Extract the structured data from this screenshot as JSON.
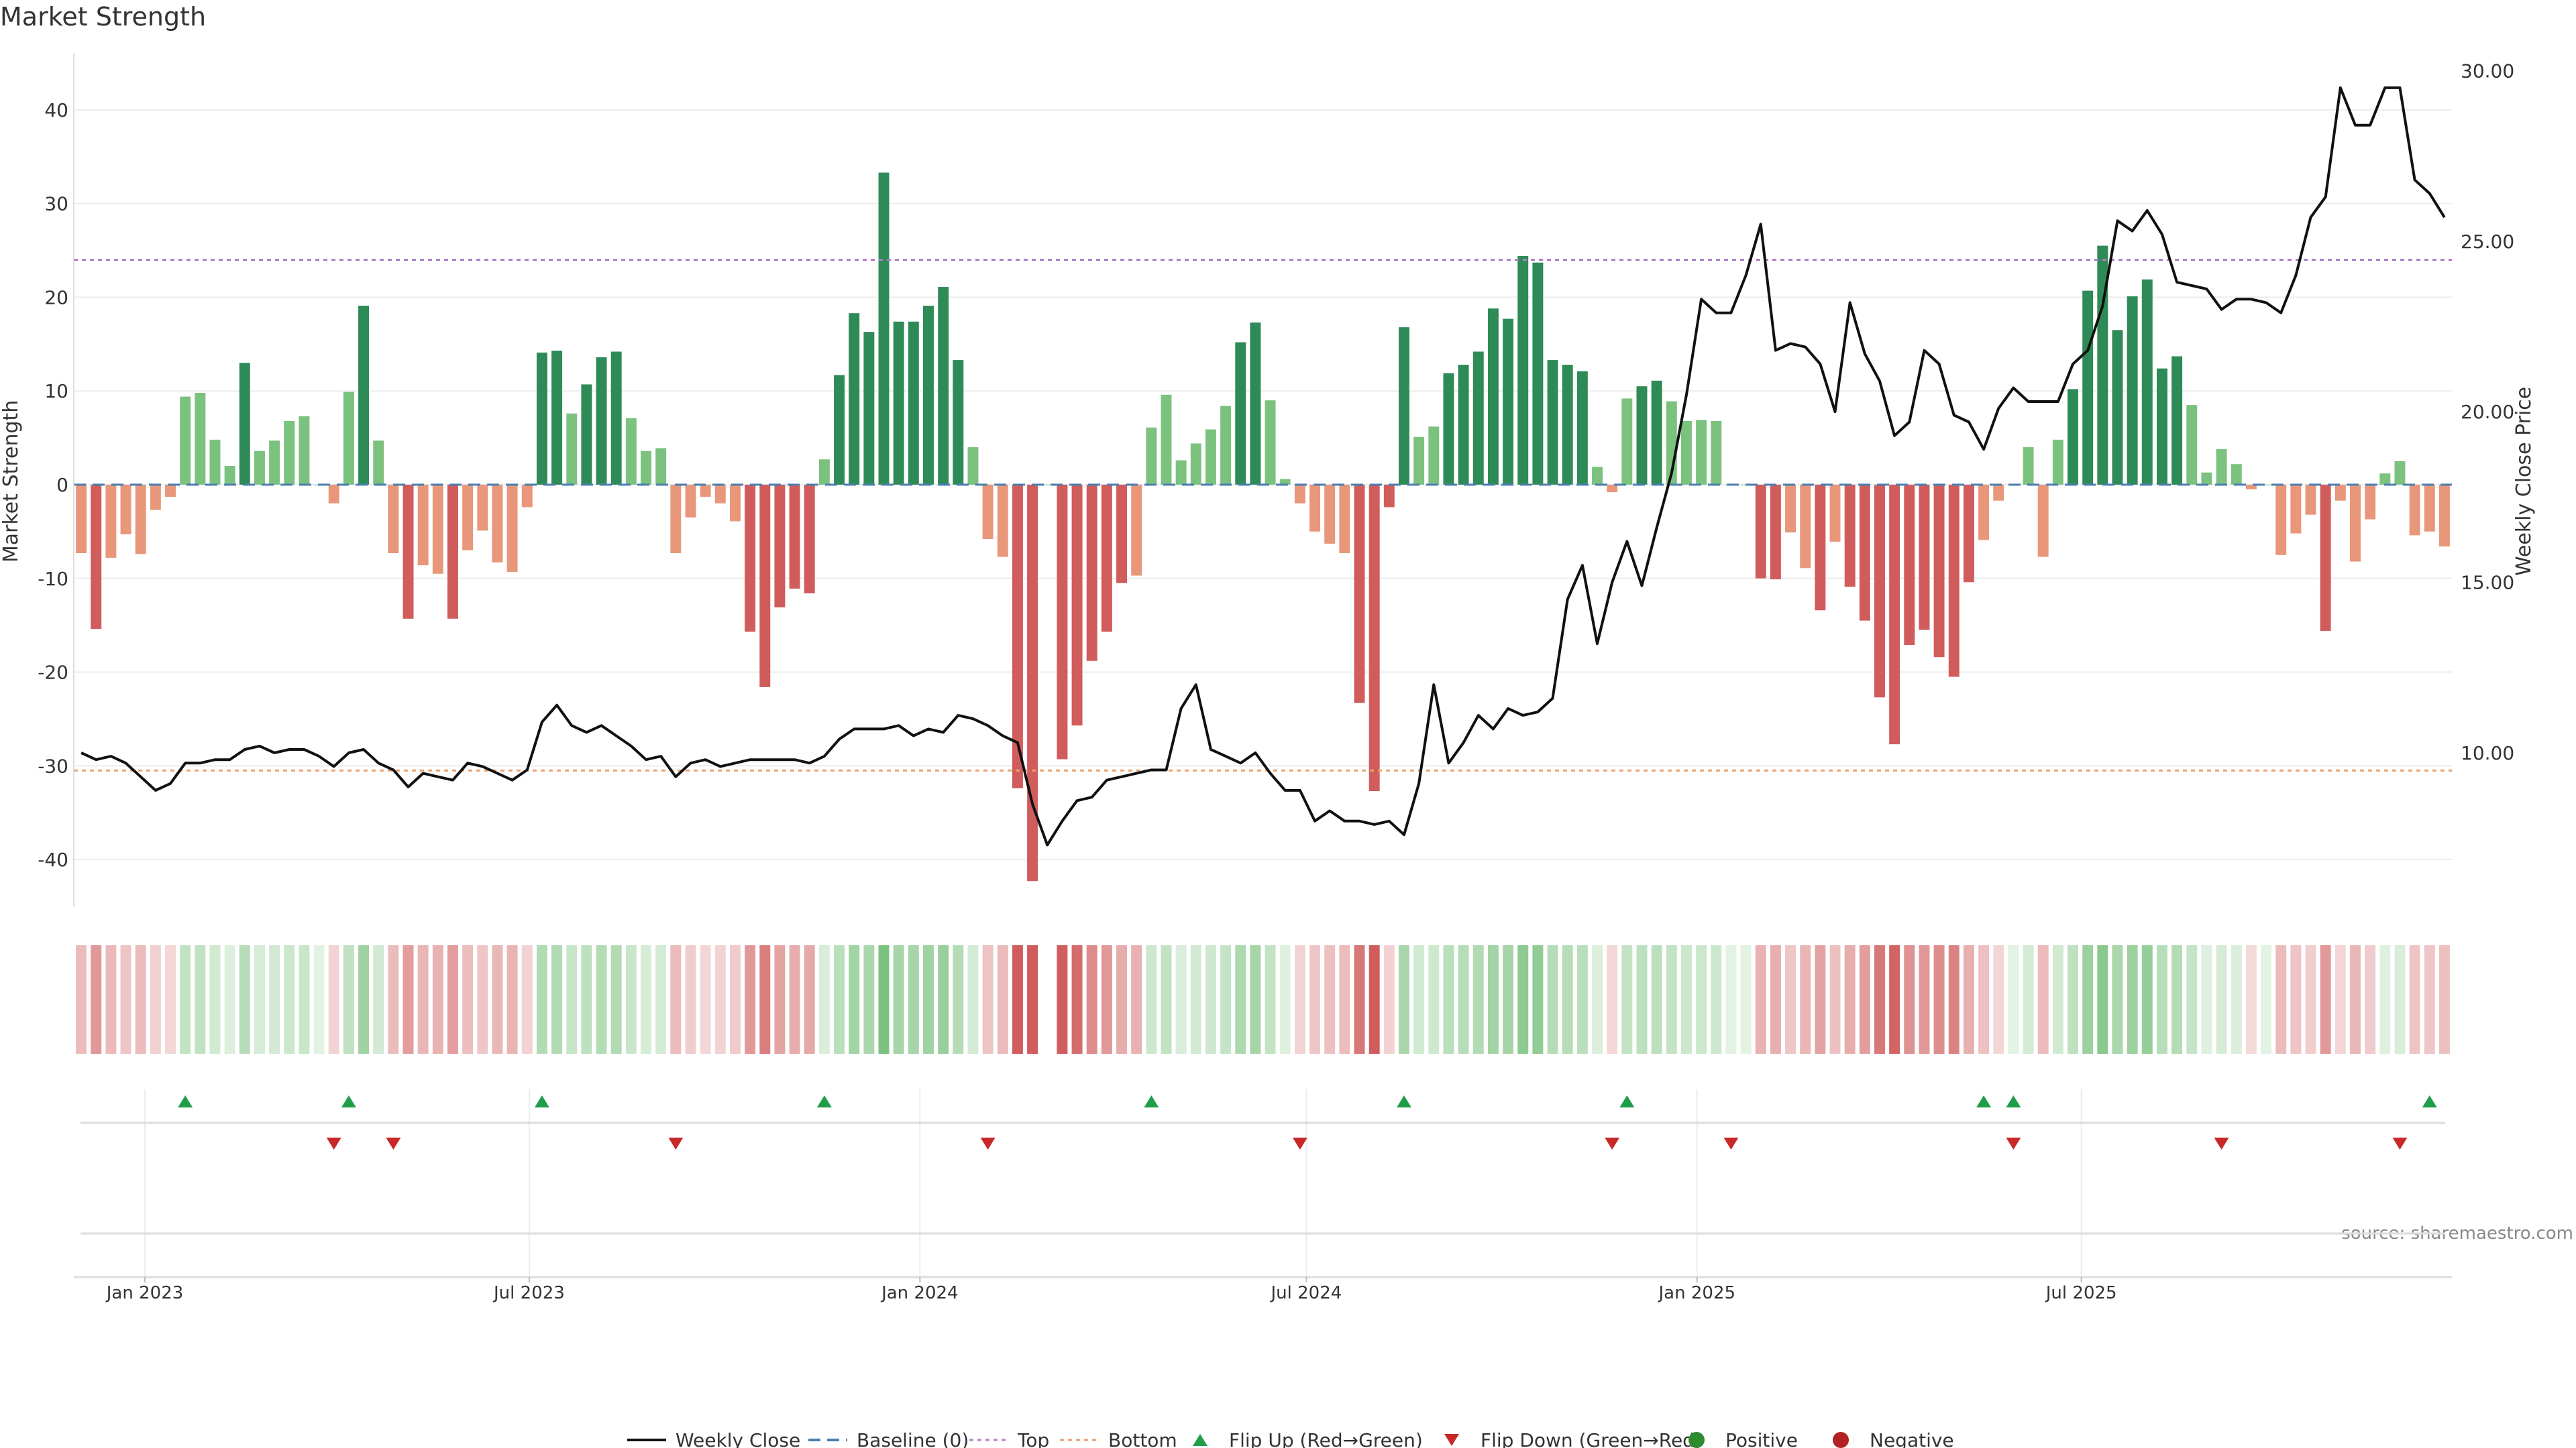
{
  "chart_data": {
    "type": "bar",
    "title": "Market Strength",
    "ylabel": "Market Strength",
    "y2label": "Weekly Close Price",
    "ylim": [
      -45,
      46
    ],
    "y2lim": [
      5.5,
      30.5
    ],
    "yticks": [
      40,
      30,
      20,
      10,
      0,
      -10,
      -20,
      -30,
      -40
    ],
    "y2ticks": [
      "30.00",
      "25.00",
      "20.00",
      "15.00",
      "10.00"
    ],
    "y2tick_values": [
      30,
      25,
      20,
      15,
      10
    ],
    "x_start": "2022-12-02",
    "week_step": 1,
    "x_ticks": [
      {
        "label": "Jan 2023",
        "date": "2023-01-01"
      },
      {
        "label": "Jul 2023",
        "date": "2023-07-01"
      },
      {
        "label": "Jan 2024",
        "date": "2024-01-01"
      },
      {
        "label": "Jul 2024",
        "date": "2024-07-01"
      },
      {
        "label": "Jan 2025",
        "date": "2025-01-01"
      },
      {
        "label": "Jul 2025",
        "date": "2025-07-01"
      }
    ],
    "top_line": 24,
    "bottom_line": -30.5,
    "baseline": 0,
    "strength": [
      -7.3,
      -15.4,
      -7.8,
      -5.3,
      -7.4,
      -2.7,
      -1.3,
      9.4,
      9.8,
      4.8,
      2,
      13,
      3.6,
      4.7,
      6.8,
      7.3,
      0,
      -2,
      9.9,
      19.1,
      4.7,
      -7.3,
      -14.3,
      -8.6,
      -9.5,
      -14.3,
      -7,
      -4.9,
      -8.3,
      -9.3,
      -2.4,
      14.1,
      14.3,
      7.6,
      10.7,
      13.6,
      14.2,
      7.1,
      3.6,
      3.9,
      -7.3,
      -3.5,
      -1.3,
      -2,
      -3.9,
      -15.7,
      -21.6,
      -13.1,
      -11.1,
      -11.6,
      2.7,
      11.7,
      18.3,
      16.3,
      33.3,
      17.4,
      17.4,
      19.1,
      21.1,
      13.3,
      4,
      -5.8,
      -7.7,
      -32.4,
      -42.3,
      0,
      -29.3,
      -25.7,
      -18.8,
      -15.7,
      -10.5,
      -9.7,
      6.1,
      9.6,
      2.6,
      4.4,
      5.9,
      8.4,
      15.2,
      17.3,
      9,
      0.6,
      -2,
      -5,
      -6.3,
      -7.3,
      -23.3,
      -32.7,
      -2.4,
      16.8,
      5.1,
      6.2,
      11.9,
      12.8,
      14.2,
      18.8,
      17.7,
      24.4,
      23.7,
      13.3,
      12.8,
      12.1,
      1.9,
      -0.8,
      9.2,
      10.5,
      11.1,
      8.9,
      6.8,
      6.9,
      6.8,
      0,
      0,
      -10,
      -10.1,
      -5.1,
      -8.9,
      -13.4,
      -6.1,
      -10.9,
      -14.5,
      -22.7,
      -27.7,
      -17.1,
      -15.5,
      -18.4,
      -20.5,
      -10.4,
      -5.9,
      -1.7,
      0,
      4,
      -7.7,
      4.8,
      10.2,
      20.7,
      25.5,
      16.5,
      20.1,
      21.9,
      12.4,
      13.7,
      8.5,
      1.3,
      3.8,
      2.2,
      -0.5,
      0,
      -7.5,
      -5.2,
      -3.2,
      -15.6,
      -1.7,
      -8.2,
      -3.7,
      1.2,
      2.5,
      -5.4,
      -5,
      -6.6
    ],
    "weekly_close": [
      10,
      9.8,
      9.9,
      9.7,
      9.3,
      8.9,
      9.1,
      9.7,
      9.7,
      9.8,
      9.8,
      10.1,
      10.2,
      10.0,
      10.1,
      10.1,
      9.9,
      9.6,
      10.0,
      10.1,
      9.7,
      9.5,
      9.0,
      9.4,
      9.3,
      9.2,
      9.7,
      9.6,
      9.4,
      9.2,
      9.5,
      10.9,
      11.4,
      10.8,
      10.6,
      10.8,
      10.5,
      10.2,
      9.8,
      9.9,
      9.3,
      9.7,
      9.8,
      9.6,
      9.7,
      9.8,
      9.8,
      9.8,
      9.8,
      9.7,
      9.9,
      10.4,
      10.7,
      10.7,
      10.7,
      10.8,
      10.5,
      10.7,
      10.6,
      11.1,
      11.0,
      10.8,
      10.5,
      10.3,
      8.5,
      7.3,
      8.0,
      8.6,
      8.7,
      9.2,
      9.3,
      9.4,
      9.5,
      9.5,
      11.3,
      12.0,
      10.1,
      9.9,
      9.7,
      10.0,
      9.4,
      8.9,
      8.9,
      8.0,
      8.3,
      8.0,
      8.0,
      7.9,
      8.0,
      7.6,
      9.1,
      12.0,
      9.7,
      10.3,
      11.1,
      10.7,
      11.3,
      11.1,
      11.2,
      11.6,
      14.5,
      15.5,
      13.2,
      15.0,
      16.2,
      14.9,
      16.6,
      18.2,
      20.5,
      23.3,
      22.9,
      22.9,
      24.0,
      25.5,
      21.8,
      22.0,
      21.9,
      21.4,
      20.0,
      23.2,
      21.7,
      20.9,
      19.3,
      19.7,
      21.8,
      21.4,
      19.9,
      19.7,
      18.9,
      20.1,
      20.7,
      20.3,
      20.3,
      20.3,
      21.4,
      21.8,
      23.1,
      25.6,
      25.3,
      25.9,
      25.2,
      23.8,
      23.7,
      23.6,
      23.0,
      23.3,
      23.3,
      23.2,
      22.9,
      24.0,
      25.7,
      26.3,
      29.5,
      28.4,
      28.4,
      29.5,
      29.5,
      26.8,
      26.4,
      25.7
    ],
    "heat_gaps": [
      65
    ],
    "flip_up_weeks": [
      7,
      18,
      31,
      50,
      72,
      89,
      104,
      128,
      130,
      158
    ],
    "flip_down_weeks": [
      17,
      21,
      40,
      61,
      82,
      103,
      111,
      130,
      144,
      156
    ],
    "source": "source: sharemaestro.com",
    "colors": {
      "strong_pos": "#2e8b57",
      "weak_pos": "#7cc27f",
      "strong_neg": "#d05c5c",
      "weak_neg": "#e8977a",
      "close_line": "#111111",
      "baseline": "#4a7fb0",
      "top": "#b07cc6",
      "bottom": "#e8a070",
      "flip_up": "#1f9e4a",
      "flip_down": "#c82828",
      "positive": "#2e8b2e",
      "negative": "#b22222",
      "grid": "#ececec"
    },
    "legend": [
      {
        "label": "Weekly Close",
        "kind": "line",
        "color": "#111111"
      },
      {
        "label": "Baseline (0)",
        "kind": "dash",
        "color": "#4a7fb0"
      },
      {
        "label": "Top",
        "kind": "dot",
        "color": "#b07cc6"
      },
      {
        "label": "Bottom",
        "kind": "dot",
        "color": "#e8a070"
      },
      {
        "label": "Flip Up (Red→Green)",
        "kind": "up",
        "color": "#1f9e4a"
      },
      {
        "label": "Flip Down (Green→Red)",
        "kind": "down",
        "color": "#c82828"
      },
      {
        "label": "Positive",
        "kind": "circle",
        "color": "#2e8b2e"
      },
      {
        "label": "Negative",
        "kind": "circle",
        "color": "#b22222"
      }
    ],
    "grid": true,
    "legend_position": "bottom"
  }
}
